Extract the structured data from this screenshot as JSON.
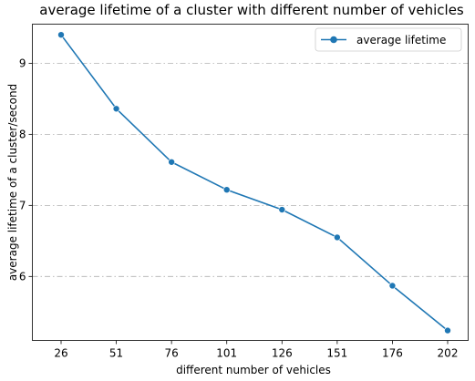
{
  "chart_data": {
    "type": "line",
    "title": "average lifetime of a cluster with different number of vehicles",
    "xlabel": "different number of vehicles",
    "ylabel": "average lifetime of a cluster/second",
    "categories": [
      "26",
      "51",
      "76",
      "101",
      "126",
      "151",
      "176",
      "202"
    ],
    "series": [
      {
        "name": "average lifetime",
        "values": [
          9.4,
          8.36,
          7.61,
          7.22,
          6.94,
          6.55,
          5.87,
          5.24
        ],
        "color": "#1f77b4",
        "marker": "circle"
      }
    ],
    "yticks": [
      6,
      7,
      8,
      9
    ],
    "ylim": [
      5.1,
      9.55
    ],
    "grid": "horizontal dash-dot",
    "legend": "top-right"
  }
}
